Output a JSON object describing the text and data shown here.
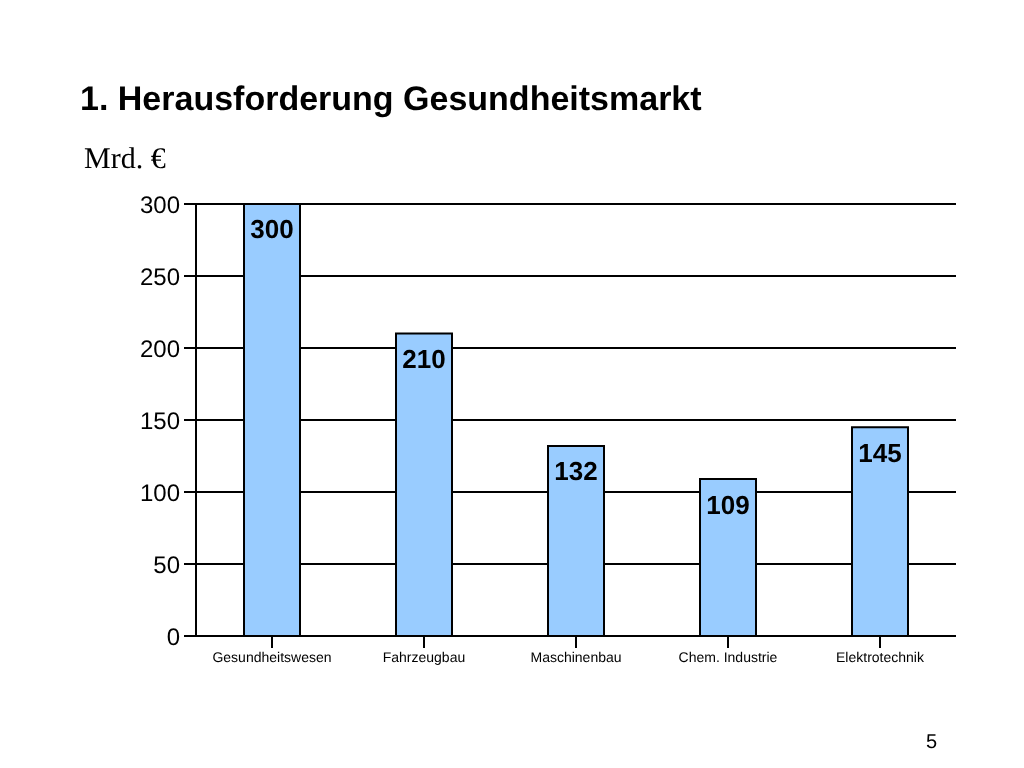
{
  "chart_data": {
    "type": "bar",
    "title": "1. Herausforderung Gesundheitsmarkt",
    "ylabel": "Mrd. €",
    "categories": [
      "Gesundheitswesen",
      "Fahrzeugbau",
      "Maschinenbau",
      "Chem. Industrie",
      "Elektrotechnik"
    ],
    "values": [
      300,
      210,
      132,
      109,
      145
    ],
    "color": "#99ccff",
    "data_labels": true,
    "ylim": [
      0,
      300
    ],
    "yticks": [
      0,
      50,
      100,
      150,
      200,
      250,
      300
    ],
    "grid": "y",
    "annotations": [
      "5"
    ]
  }
}
